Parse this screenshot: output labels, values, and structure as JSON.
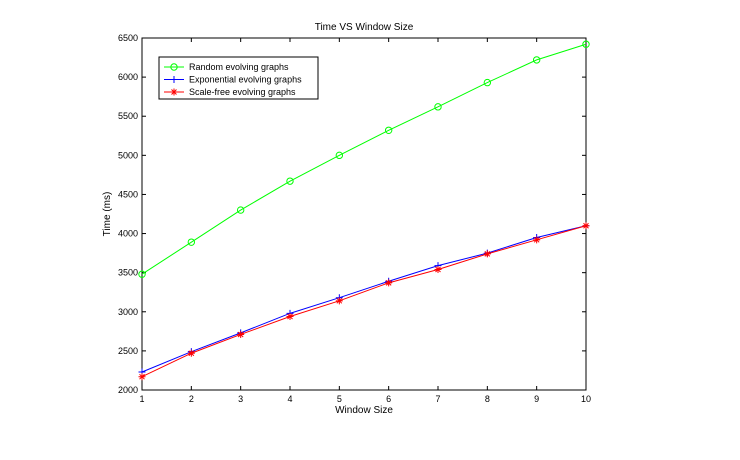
{
  "chart_data": {
    "type": "line",
    "title": "Time VS Window Size",
    "xlabel": "Window Size",
    "ylabel": "Time (ms)",
    "xlim": [
      1,
      10
    ],
    "ylim": [
      2000,
      6500
    ],
    "xticks": [
      1,
      2,
      3,
      4,
      5,
      6,
      7,
      8,
      9,
      10
    ],
    "yticks": [
      2000,
      2500,
      3000,
      3500,
      4000,
      4500,
      5000,
      5500,
      6000,
      6500
    ],
    "grid": false,
    "legend_position": "top-left",
    "x": [
      1,
      2,
      3,
      4,
      5,
      6,
      7,
      8,
      9,
      10
    ],
    "series": [
      {
        "name": "Random evolving graphs",
        "color": "#00ff00",
        "marker": "circle",
        "values": [
          3480,
          3890,
          4300,
          4670,
          5000,
          5320,
          5620,
          5930,
          6220,
          6420
        ]
      },
      {
        "name": "Exponential evolving graphs",
        "color": "#0000ff",
        "marker": "plus",
        "values": [
          2230,
          2490,
          2730,
          2980,
          3180,
          3390,
          3590,
          3750,
          3950,
          4100
        ]
      },
      {
        "name": "Scale-free evolving graphs",
        "color": "#ff0000",
        "marker": "star",
        "values": [
          2170,
          2470,
          2710,
          2940,
          3140,
          3370,
          3540,
          3740,
          3920,
          4100
        ]
      }
    ]
  }
}
